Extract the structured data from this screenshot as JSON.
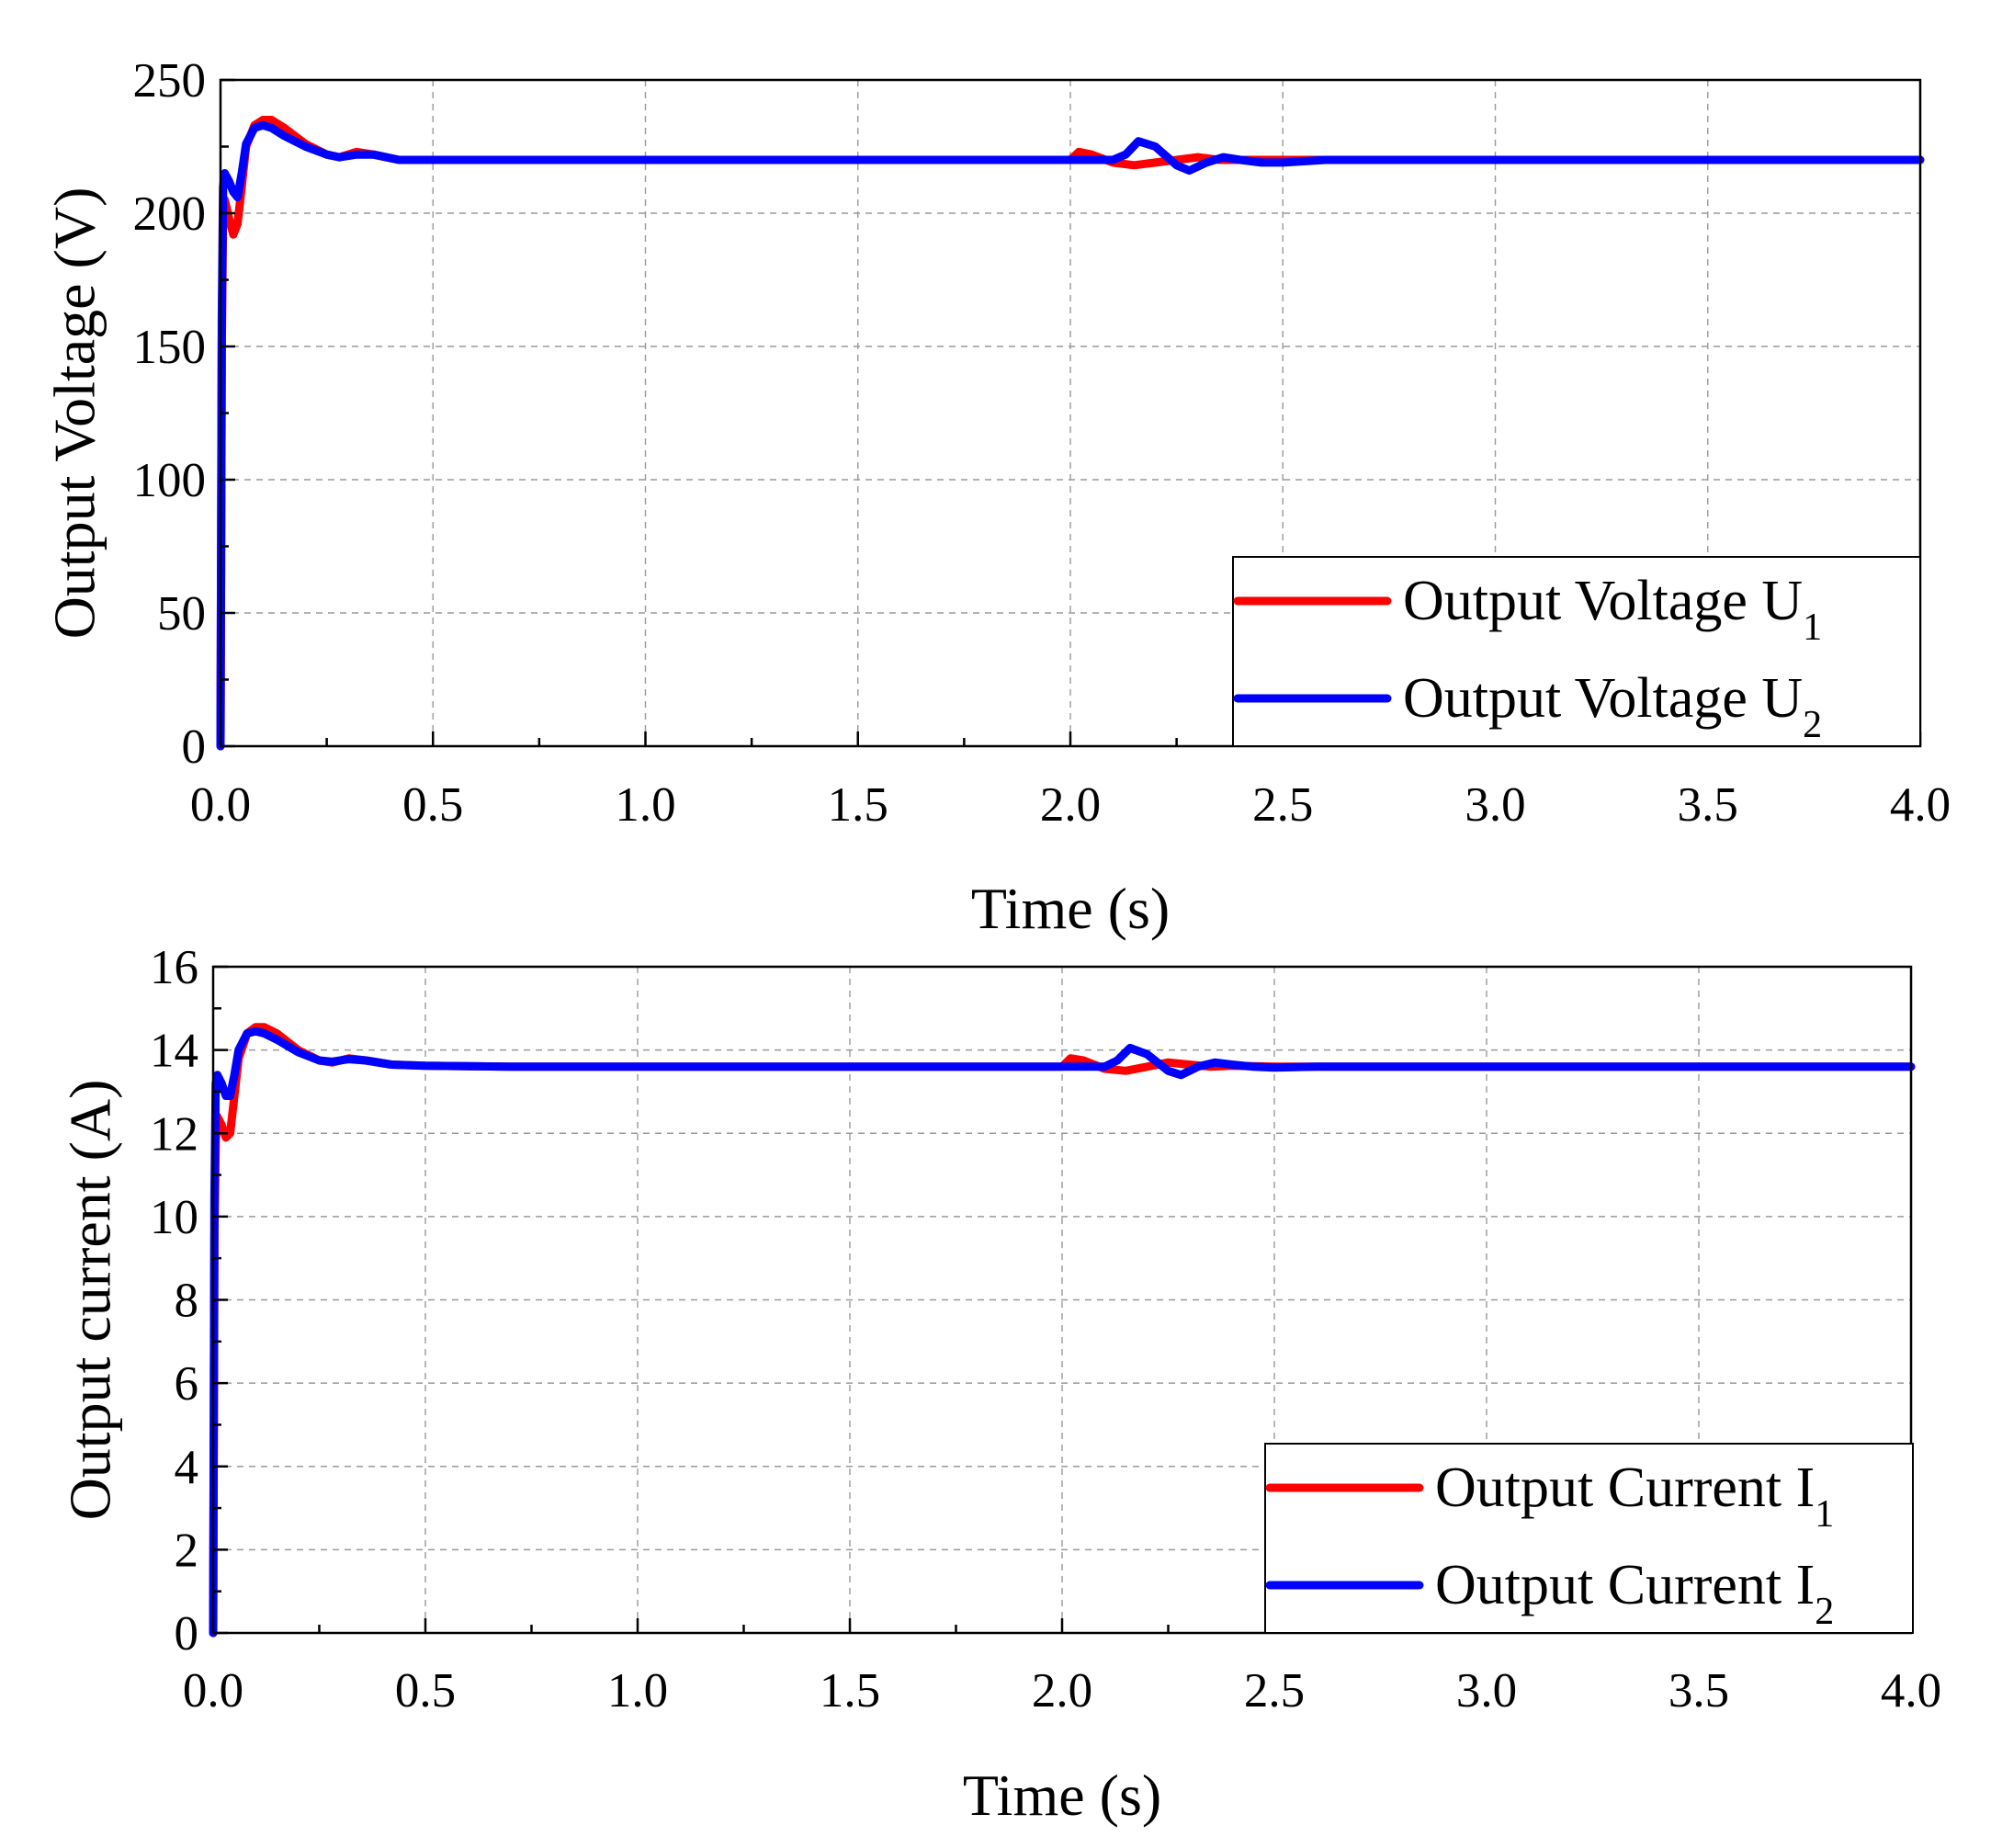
{
  "chart_data": [
    {
      "type": "line",
      "id": "voltage",
      "xlabel": "Time (s)",
      "ylabel": "Output Voltage (V)",
      "xlim": [
        0,
        4
      ],
      "ylim": [
        0,
        250
      ],
      "xticks": [
        0,
        0.5,
        1,
        1.5,
        2,
        2.5,
        3,
        3.5,
        4
      ],
      "xtick_labels": [
        "0.0",
        "0.5",
        "1.0",
        "1.5",
        "2.0",
        "2.5",
        "3.0",
        "3.5",
        "4.0"
      ],
      "yticks": [
        0,
        50,
        100,
        150,
        200,
        250
      ],
      "ytick_labels": [
        "0",
        "50",
        "100",
        "150",
        "200",
        "250"
      ],
      "grid": true,
      "legend_position": "bottom-right",
      "series": [
        {
          "name": "Output Voltage U1",
          "label_main": "Output Voltage U",
          "label_sub": "1",
          "color": "#ff0000",
          "x": [
            0,
            0.003,
            0.006,
            0.01,
            0.02,
            0.03,
            0.04,
            0.05,
            0.06,
            0.08,
            0.1,
            0.12,
            0.15,
            0.2,
            0.25,
            0.28,
            0.32,
            0.36,
            0.42,
            0.5,
            0.7,
            1.0,
            1.5,
            2.0,
            2.02,
            2.05,
            2.1,
            2.15,
            2.2,
            2.25,
            2.3,
            2.35,
            2.4,
            2.5,
            2.6,
            2.8,
            3.0,
            3.5,
            4.0
          ],
          "y": [
            0,
            150,
            200,
            205,
            198,
            192,
            196,
            210,
            225,
            233,
            235,
            235,
            232,
            226,
            222,
            221,
            223,
            222,
            220,
            220,
            220,
            220,
            220,
            220,
            223,
            222,
            219,
            218,
            219,
            220,
            221,
            220,
            220,
            220,
            220,
            220,
            220,
            220,
            220
          ]
        },
        {
          "name": "Output Voltage U2",
          "label_main": "Output Voltage U",
          "label_sub": "2",
          "color": "#0000ff",
          "x": [
            0,
            0.003,
            0.006,
            0.01,
            0.02,
            0.03,
            0.04,
            0.05,
            0.06,
            0.08,
            0.1,
            0.12,
            0.15,
            0.2,
            0.25,
            0.28,
            0.32,
            0.36,
            0.42,
            0.5,
            0.7,
            1.0,
            1.5,
            2.0,
            2.05,
            2.1,
            2.13,
            2.16,
            2.2,
            2.25,
            2.28,
            2.32,
            2.36,
            2.4,
            2.45,
            2.5,
            2.6,
            2.8,
            3.0,
            3.5,
            4.0
          ],
          "y": [
            0,
            160,
            210,
            215,
            212,
            208,
            206,
            215,
            226,
            232,
            233,
            232,
            229,
            225,
            222,
            221,
            222,
            222,
            220,
            220,
            220,
            220,
            220,
            220,
            220,
            220,
            222,
            227,
            225,
            218,
            216,
            219,
            221,
            220,
            219,
            219,
            220,
            220,
            220,
            220,
            220
          ]
        }
      ]
    },
    {
      "type": "line",
      "id": "current",
      "xlabel": "Time (s)",
      "ylabel": "Output current (A)",
      "xlim": [
        0,
        4
      ],
      "ylim": [
        0,
        16
      ],
      "xticks": [
        0,
        0.5,
        1,
        1.5,
        2,
        2.5,
        3,
        3.5,
        4
      ],
      "xtick_labels": [
        "0.0",
        "0.5",
        "1.0",
        "1.5",
        "2.0",
        "2.5",
        "3.0",
        "3.5",
        "4.0"
      ],
      "yticks": [
        0,
        2,
        4,
        6,
        8,
        10,
        12,
        14,
        16
      ],
      "ytick_labels": [
        "0",
        "2",
        "4",
        "6",
        "8",
        "10",
        "12",
        "14",
        "16"
      ],
      "grid": true,
      "legend_position": "bottom-right",
      "series": [
        {
          "name": "Output Current I1",
          "label_main": "Output Current I",
          "label_sub": "1",
          "color": "#ff0000",
          "x": [
            0,
            0.003,
            0.006,
            0.01,
            0.02,
            0.03,
            0.04,
            0.05,
            0.06,
            0.08,
            0.1,
            0.12,
            0.15,
            0.2,
            0.25,
            0.28,
            0.32,
            0.36,
            0.42,
            0.5,
            0.7,
            1.0,
            1.5,
            2.0,
            2.02,
            2.05,
            2.1,
            2.15,
            2.2,
            2.25,
            2.3,
            2.35,
            2.4,
            2.5,
            2.6,
            2.8,
            3.0,
            3.5,
            4.0
          ],
          "y": [
            0,
            9.5,
            11.8,
            12.4,
            12.2,
            11.9,
            12.0,
            12.9,
            13.8,
            14.4,
            14.55,
            14.55,
            14.4,
            14.0,
            13.75,
            13.7,
            13.8,
            13.75,
            13.65,
            13.62,
            13.6,
            13.6,
            13.6,
            13.6,
            13.8,
            13.75,
            13.55,
            13.5,
            13.6,
            13.7,
            13.65,
            13.6,
            13.62,
            13.6,
            13.6,
            13.6,
            13.6,
            13.6,
            13.6
          ]
        },
        {
          "name": "Output Current I2",
          "label_main": "Output Current I",
          "label_sub": "2",
          "color": "#0000ff",
          "x": [
            0,
            0.003,
            0.006,
            0.01,
            0.02,
            0.03,
            0.04,
            0.05,
            0.06,
            0.08,
            0.1,
            0.12,
            0.15,
            0.2,
            0.25,
            0.28,
            0.32,
            0.36,
            0.42,
            0.5,
            0.7,
            1.0,
            1.5,
            2.0,
            2.05,
            2.1,
            2.13,
            2.16,
            2.2,
            2.25,
            2.28,
            2.32,
            2.36,
            2.4,
            2.45,
            2.5,
            2.6,
            2.8,
            3.0,
            3.5,
            4.0
          ],
          "y": [
            0,
            10.5,
            13.2,
            13.4,
            13.2,
            12.9,
            12.9,
            13.4,
            14.0,
            14.4,
            14.45,
            14.4,
            14.25,
            13.95,
            13.75,
            13.72,
            13.78,
            13.75,
            13.65,
            13.62,
            13.6,
            13.6,
            13.6,
            13.6,
            13.6,
            13.6,
            13.75,
            14.05,
            13.9,
            13.5,
            13.4,
            13.6,
            13.7,
            13.65,
            13.6,
            13.58,
            13.6,
            13.6,
            13.6,
            13.6,
            13.6
          ]
        }
      ]
    }
  ]
}
